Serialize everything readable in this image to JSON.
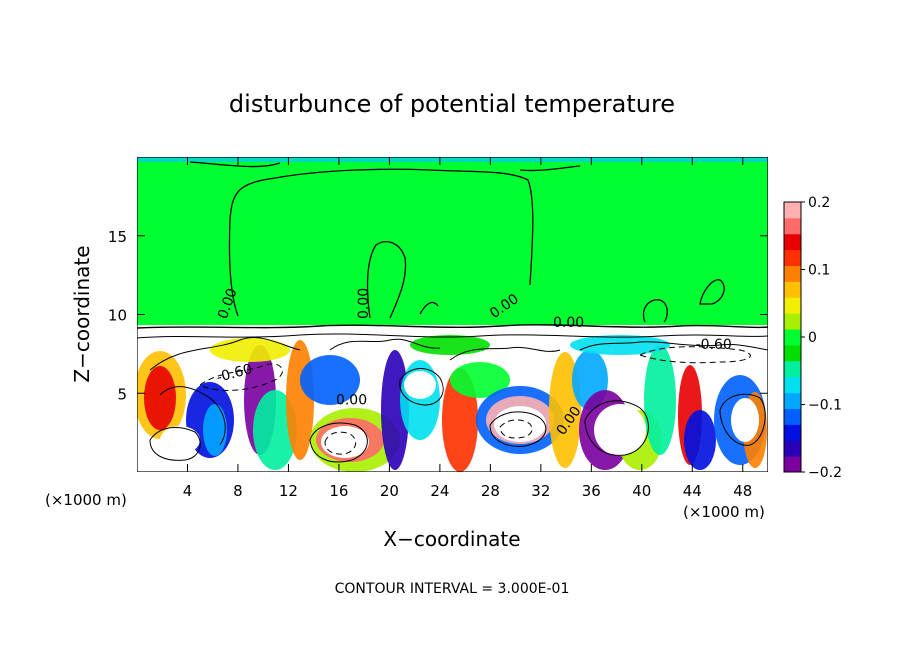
{
  "chart_data": {
    "type": "heatmap",
    "title": "disturbunce of potential temperature",
    "xlabel": "X−coordinate",
    "ylabel": "Z−coordinate",
    "x_unit_left": "(×1000 m)",
    "x_unit_right": "(×1000 m)",
    "xlim": [
      0,
      50
    ],
    "ylim": [
      0,
      20
    ],
    "xticks": [
      4,
      8,
      12,
      16,
      20,
      24,
      28,
      32,
      36,
      40,
      44,
      48
    ],
    "yticks": [
      5,
      10,
      15
    ],
    "colorbar": {
      "min": -0.2,
      "max": 0.2,
      "tick_values": [
        0.2,
        0.1,
        0,
        -0.1,
        -0.2
      ],
      "tick_labels": [
        "0.2",
        "0.1",
        "0",
        "−0.1",
        "−0.2"
      ],
      "colors": [
        "#7a00a0",
        "#2a00b8",
        "#0010e0",
        "#0060ff",
        "#00a8ff",
        "#00e0f0",
        "#00f0a0",
        "#00e000",
        "#00ff30",
        "#a8f000",
        "#f0f000",
        "#ffc000",
        "#ff8000",
        "#ff3000",
        "#e80000",
        "#ff6a6a",
        "#ffb0b0"
      ]
    },
    "contour_labels": [
      {
        "text": "0.00",
        "x": 7.5,
        "z": 10.6,
        "rotate": -70
      },
      {
        "text": "-0.60",
        "x": 7.8,
        "z": 6.0,
        "rotate": -15
      },
      {
        "text": "0.00",
        "x": 18.3,
        "z": 10.7,
        "rotate": -90
      },
      {
        "text": "0.00",
        "x": 29.3,
        "z": 10.3,
        "rotate": -35
      },
      {
        "text": "0.00",
        "x": 34.2,
        "z": 9.2,
        "rotate": 0
      },
      {
        "text": "0.00",
        "x": 17.0,
        "z": 4.3,
        "rotate": 0
      },
      {
        "text": "0.00",
        "x": 34.5,
        "z": 3.1,
        "rotate": -55
      },
      {
        "text": "-0.60",
        "x": 45.7,
        "z": 7.8,
        "rotate": 0
      }
    ],
    "footer": "CONTOUR INTERVAL = 3.000E-01"
  }
}
